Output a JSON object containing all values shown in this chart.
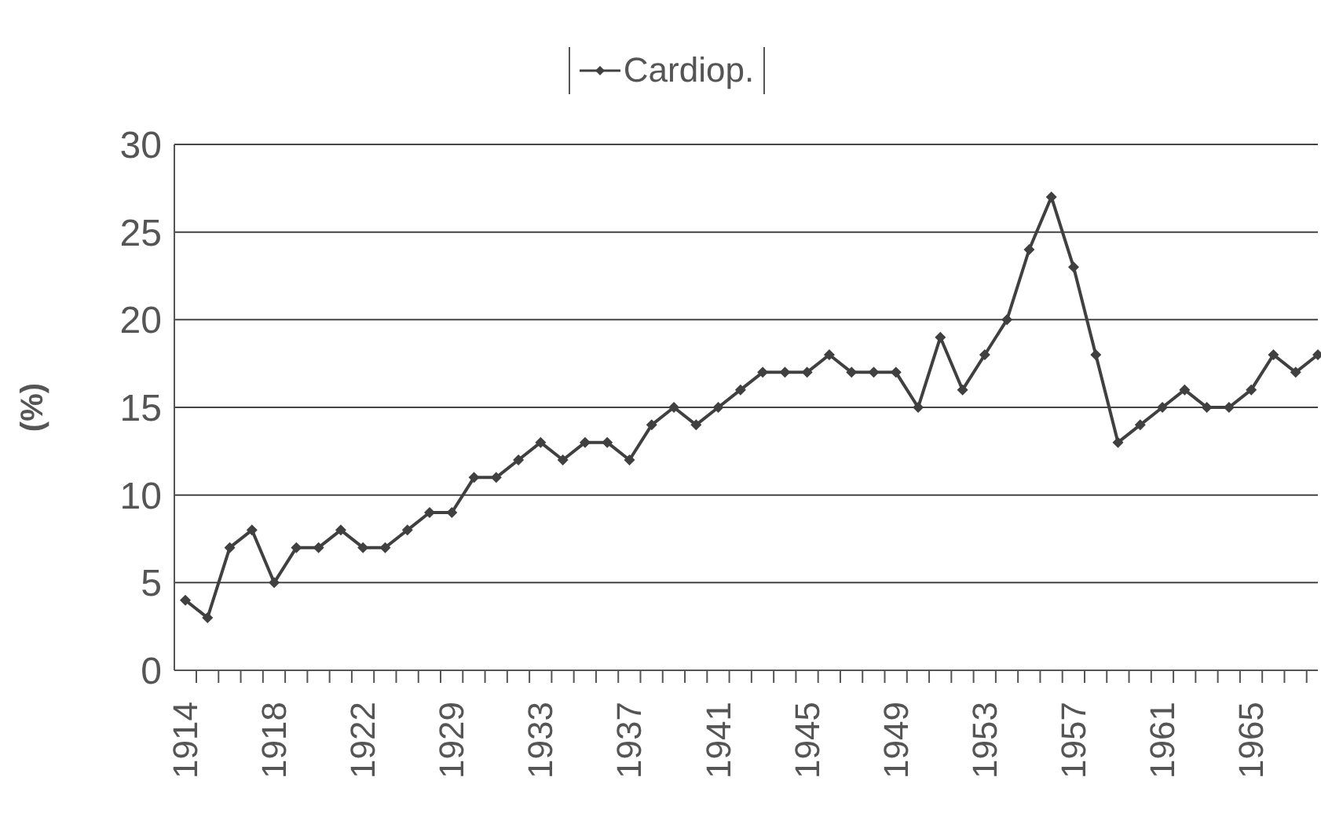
{
  "chart_data": {
    "type": "line",
    "ylabel": "(%)",
    "categories": [
      "1914",
      null,
      null,
      null,
      "1918",
      null,
      null,
      null,
      "1922",
      null,
      null,
      null,
      "1929",
      null,
      null,
      null,
      "1933",
      null,
      null,
      null,
      "1937",
      null,
      null,
      null,
      "1941",
      null,
      null,
      null,
      "1945",
      null,
      null,
      null,
      "1949",
      null,
      null,
      null,
      "1953",
      null,
      null,
      null,
      "1957",
      null,
      null,
      null,
      "1961",
      null,
      null,
      null,
      "1965",
      null,
      null,
      null
    ],
    "series": [
      {
        "name": "Cardiop.",
        "color": "#404040",
        "values": [
          4,
          3,
          7,
          8,
          5,
          7,
          7,
          8,
          7,
          7,
          8,
          9,
          9,
          11,
          11,
          12,
          13,
          12,
          13,
          13,
          12,
          14,
          15,
          14,
          15,
          16,
          17,
          17,
          17,
          18,
          17,
          17,
          17,
          15,
          19,
          16,
          18,
          20,
          24,
          27,
          23,
          18,
          13,
          14,
          15,
          16,
          15,
          15,
          16,
          18,
          17,
          18
        ]
      }
    ],
    "ylim": [
      0,
      30
    ],
    "yticks": [
      0,
      5,
      10,
      15,
      20,
      25,
      30
    ],
    "grid": "y",
    "legend": "top",
    "marker": "diamond",
    "line_style": "solid"
  }
}
